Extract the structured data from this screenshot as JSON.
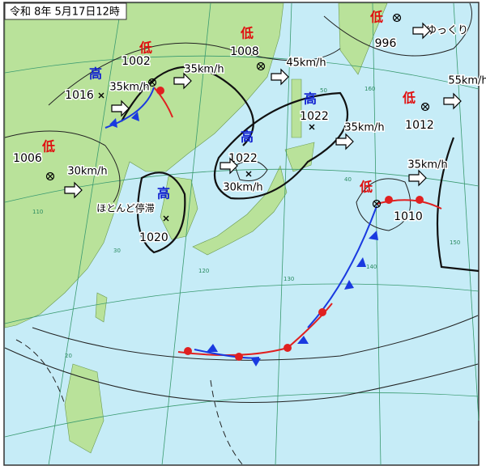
{
  "header": {
    "title": "令和 8年 5月17日12時"
  },
  "systems": [
    {
      "kind": "低",
      "pressure": 1002,
      "movement": "35km/h"
    },
    {
      "kind": "低",
      "pressure": 1008,
      "movement": "45km/h"
    },
    {
      "kind": "低",
      "pressure": 996,
      "movement": "ゆっくり"
    },
    {
      "kind": "低",
      "pressure": 1012,
      "movement": "55km/h"
    },
    {
      "kind": "低",
      "pressure": 1006,
      "movement": "30km/h"
    },
    {
      "kind": "低",
      "pressure": 1010,
      "movement": "35km/h"
    },
    {
      "kind": "高",
      "pressure": 1016,
      "movement": "35km/h"
    },
    {
      "kind": "高",
      "pressure": 1022,
      "movement": "35km/h"
    },
    {
      "kind": "高",
      "pressure": 1022,
      "movement": "30km/h"
    },
    {
      "kind": "高",
      "pressure": 1020,
      "movement": "ほとんど停滞"
    }
  ],
  "grid_labels": [
    "50",
    "40",
    "30",
    "20",
    "110",
    "120",
    "130",
    "140",
    "150",
    "160"
  ]
}
